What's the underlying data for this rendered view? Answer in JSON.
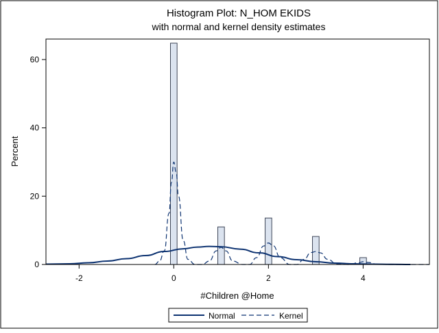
{
  "chart_data": {
    "type": "bar",
    "title": "Histogram Plot: N_HOM EKIDS",
    "subtitle": "with normal and kernel density estimates",
    "xlabel": "#Children @Home",
    "ylabel": "Percent",
    "xlim": [
      -2.7,
      5.4
    ],
    "ylim": [
      0,
      66
    ],
    "x_ticks": [
      -2,
      0,
      2,
      4
    ],
    "y_ticks": [
      0,
      20,
      40,
      60
    ],
    "x_tick_labels": [
      "-2",
      "0",
      "2",
      "4"
    ],
    "y_tick_labels": [
      "0",
      "20",
      "40",
      "60"
    ],
    "bin_width": 0.14,
    "bins": [
      {
        "x": 0,
        "percent": 64.8
      },
      {
        "x": 1,
        "percent": 11.0
      },
      {
        "x": 2,
        "percent": 13.6
      },
      {
        "x": 3,
        "percent": 8.2
      },
      {
        "x": 4,
        "percent": 2.0
      }
    ],
    "series": [
      {
        "name": "Normal",
        "style": "solid",
        "points": [
          [
            -2.7,
            0.1
          ],
          [
            -2.2,
            0.2
          ],
          [
            -1.8,
            0.5
          ],
          [
            -1.4,
            1.0
          ],
          [
            -1.0,
            1.7
          ],
          [
            -0.6,
            2.6
          ],
          [
            -0.2,
            3.8
          ],
          [
            0.2,
            4.6
          ],
          [
            0.5,
            5.1
          ],
          [
            0.75,
            5.3
          ],
          [
            1.0,
            5.2
          ],
          [
            1.4,
            4.5
          ],
          [
            1.8,
            3.4
          ],
          [
            2.2,
            2.3
          ],
          [
            2.6,
            1.4
          ],
          [
            3.0,
            0.8
          ],
          [
            3.4,
            0.4
          ],
          [
            3.8,
            0.2
          ],
          [
            4.2,
            0.1
          ],
          [
            4.6,
            0.05
          ],
          [
            5.0,
            0.0
          ]
        ]
      },
      {
        "name": "Kernel",
        "style": "dashed",
        "points": [
          [
            -0.4,
            0.0
          ],
          [
            -0.3,
            1.0
          ],
          [
            -0.2,
            4.0
          ],
          [
            -0.1,
            15.0
          ],
          [
            -0.05,
            24.0
          ],
          [
            0.0,
            30.0
          ],
          [
            0.05,
            27.0
          ],
          [
            0.1,
            20.0
          ],
          [
            0.2,
            7.0
          ],
          [
            0.3,
            1.5
          ],
          [
            0.45,
            0.0
          ],
          [
            0.6,
            0.0
          ],
          [
            0.75,
            1.0
          ],
          [
            0.9,
            4.0
          ],
          [
            1.0,
            5.0
          ],
          [
            1.1,
            4.0
          ],
          [
            1.25,
            1.0
          ],
          [
            1.45,
            0.0
          ],
          [
            1.6,
            0.0
          ],
          [
            1.75,
            2.0
          ],
          [
            1.9,
            5.4
          ],
          [
            2.0,
            6.3
          ],
          [
            2.1,
            5.5
          ],
          [
            2.25,
            2.0
          ],
          [
            2.45,
            0.0
          ],
          [
            2.6,
            0.0
          ],
          [
            2.75,
            1.5
          ],
          [
            2.9,
            3.5
          ],
          [
            3.0,
            3.8
          ],
          [
            3.1,
            3.4
          ],
          [
            3.25,
            1.5
          ],
          [
            3.45,
            0.1
          ],
          [
            3.7,
            0.0
          ],
          [
            3.9,
            0.5
          ],
          [
            4.0,
            0.8
          ],
          [
            4.1,
            0.6
          ],
          [
            4.3,
            0.1
          ],
          [
            4.6,
            0.0
          ],
          [
            5.4,
            0.0
          ]
        ]
      }
    ],
    "legend": {
      "position": "bottom-center",
      "items": [
        "Normal",
        "Kernel"
      ]
    },
    "colors": {
      "bar_fill": "#dbe3ef",
      "bar_stroke": "#3c4456",
      "line": "#0b3170"
    },
    "grid": false
  }
}
